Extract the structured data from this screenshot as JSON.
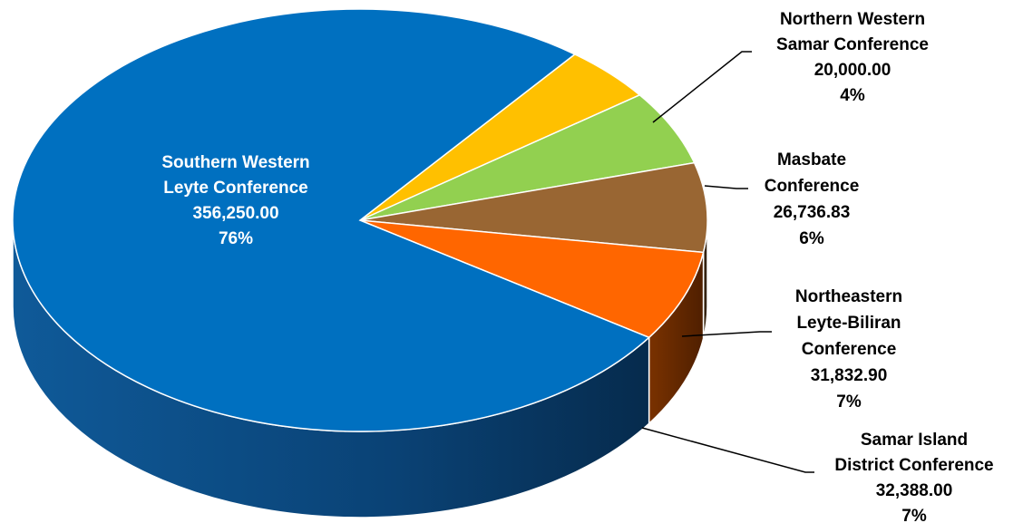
{
  "chart_data": {
    "type": "pie",
    "title": "",
    "three_d": true,
    "slices": [
      {
        "name": "Southern Western Leyte Conference",
        "value": 356250.0,
        "value_label": "356,250.00",
        "percent_label": "76%",
        "color": "#0070C0",
        "side_color": "#0B4A80",
        "label_lines": [
          "Southern Western",
          "Leyte Conference",
          "356,250.00",
          "76%"
        ],
        "label_color": "#ffffff"
      },
      {
        "name": "Northern Western Samar Conference",
        "value": 20000.0,
        "value_label": "20,000.00",
        "percent_label": "4%",
        "color": "#FFC000",
        "side_color": "#A67C00",
        "label_lines": [
          "Northern Western",
          "Samar Conference",
          "20,000.00",
          "4%"
        ],
        "label_color": "#000000"
      },
      {
        "name": "Masbate Conference",
        "value": 26736.83,
        "value_label": "26,736.83",
        "percent_label": "6%",
        "color": "#92D050",
        "side_color": "#5E8A32",
        "label_lines": [
          "Masbate",
          "Conference",
          "26,736.83",
          "6%"
        ],
        "label_color": "#000000"
      },
      {
        "name": "Northeastern Leyte-Biliran Conference",
        "value": 31832.9,
        "value_label": "31,832.90",
        "percent_label": "7%",
        "color": "#996633",
        "side_color": "#3A2610",
        "label_lines": [
          "Northeastern",
          "Leyte-Biliran",
          "Conference",
          "31,832.90",
          "7%"
        ],
        "label_color": "#000000"
      },
      {
        "name": "Samar Island District Conference",
        "value": 32388.0,
        "value_label": "32,388.00",
        "percent_label": "7%",
        "color": "#FF6600",
        "side_color": "#6B2A00",
        "label_lines": [
          "Samar Island",
          "District Conference",
          "32,388.00",
          "7%"
        ],
        "label_color": "#000000"
      }
    ],
    "legend": "none"
  }
}
